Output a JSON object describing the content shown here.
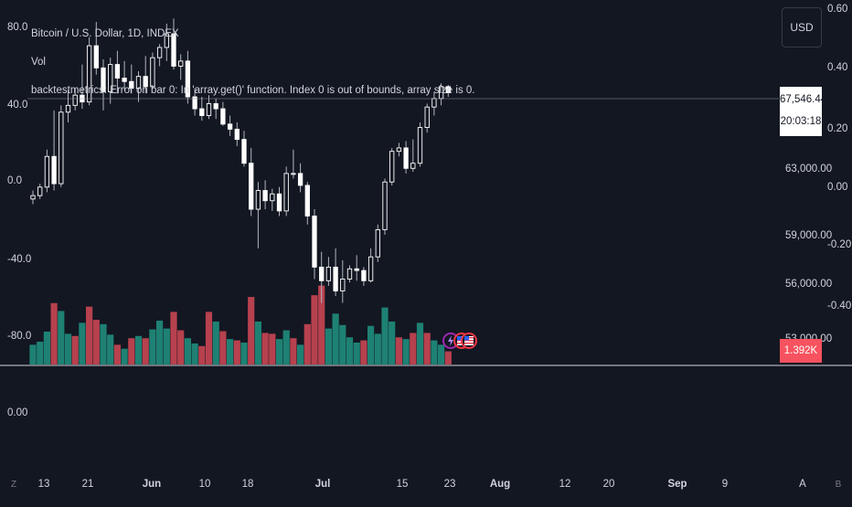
{
  "header": {
    "symbol": "Bitcoin / U.S. Dollar, 1D, INDEX",
    "volume_label": "Vol",
    "error_message": "backtestmetrics: Error on bar 0: In 'array.get()' function. Index 0 is out of bounds, array size is 0."
  },
  "currency_button": {
    "label": "USD"
  },
  "current_price": {
    "value": "67,546.44",
    "countdown": "20:03:18"
  },
  "current_volume": {
    "value": "1.392K"
  },
  "event_icons": [
    {
      "name": "lightning-icon",
      "color": "#9c27b0"
    },
    {
      "name": "us-flag-icon",
      "color": "#f23645"
    },
    {
      "name": "us-flag-icon",
      "color": "#f23645"
    }
  ],
  "chart_data": {
    "type": "candlestick",
    "title": "Bitcoin / U.S. Dollar, 1D, INDEX",
    "legend": [
      "Vol"
    ],
    "colors": {
      "up": "#ffffff",
      "down": "#ffffff",
      "vol_up": "#22ab94",
      "vol_down": "#f7525f",
      "wick": "#b2b5be"
    },
    "left_axis": {
      "ticks": [
        "80.0",
        "40.0",
        "0.0",
        "-40.0",
        "-80.0"
      ],
      "lower_pane_ticks": [
        "0.00"
      ]
    },
    "right_axis_outer": {
      "ticks": [
        "0.60",
        "0.40",
        "0.20",
        "0.00",
        "-0.20",
        "-0.40"
      ]
    },
    "right_axis_price": {
      "ticks": [
        "63,000.00",
        "59,000.00",
        "56,000.00",
        "53,000.00"
      ]
    },
    "x_axis": {
      "ticks": [
        "Z",
        "13",
        "21",
        "Jun",
        "10",
        "18",
        "Jul",
        "15",
        "23",
        "Aug",
        "12",
        "20",
        "Sep",
        "9",
        "A",
        "B"
      ]
    },
    "price_line": 67546.44,
    "candles": [
      {
        "o": 61300,
        "h": 61800,
        "l": 61000,
        "c": 61500
      },
      {
        "o": 61500,
        "h": 62200,
        "l": 61300,
        "c": 62000
      },
      {
        "o": 62000,
        "h": 64200,
        "l": 61700,
        "c": 63800
      },
      {
        "o": 63800,
        "h": 66500,
        "l": 61800,
        "c": 62200
      },
      {
        "o": 62200,
        "h": 66800,
        "l": 62000,
        "c": 66400
      },
      {
        "o": 66400,
        "h": 67700,
        "l": 65800,
        "c": 66800
      },
      {
        "o": 66800,
        "h": 67800,
        "l": 66500,
        "c": 67400
      },
      {
        "o": 67400,
        "h": 69200,
        "l": 66600,
        "c": 67000
      },
      {
        "o": 67000,
        "h": 70800,
        "l": 66800,
        "c": 70300
      },
      {
        "o": 70300,
        "h": 71700,
        "l": 68600,
        "c": 69000
      },
      {
        "o": 69000,
        "h": 69500,
        "l": 66500,
        "c": 67600
      },
      {
        "o": 67600,
        "h": 69600,
        "l": 66900,
        "c": 69200
      },
      {
        "o": 69200,
        "h": 70000,
        "l": 67500,
        "c": 68400
      },
      {
        "o": 68400,
        "h": 69400,
        "l": 67700,
        "c": 68200
      },
      {
        "o": 68200,
        "h": 69200,
        "l": 67500,
        "c": 67800
      },
      {
        "o": 67800,
        "h": 68800,
        "l": 67000,
        "c": 68500
      },
      {
        "o": 68500,
        "h": 69700,
        "l": 67500,
        "c": 67900
      },
      {
        "o": 67900,
        "h": 69900,
        "l": 67800,
        "c": 69600
      },
      {
        "o": 69600,
        "h": 70400,
        "l": 69100,
        "c": 70200
      },
      {
        "o": 70200,
        "h": 71600,
        "l": 69400,
        "c": 71000
      },
      {
        "o": 71000,
        "h": 71900,
        "l": 68900,
        "c": 69100
      },
      {
        "o": 69100,
        "h": 69800,
        "l": 68300,
        "c": 69400
      },
      {
        "o": 69400,
        "h": 70000,
        "l": 66900,
        "c": 67300
      },
      {
        "o": 67300,
        "h": 67800,
        "l": 66200,
        "c": 66600
      },
      {
        "o": 66600,
        "h": 67300,
        "l": 65900,
        "c": 66200
      },
      {
        "o": 66200,
        "h": 67400,
        "l": 66000,
        "c": 66900
      },
      {
        "o": 66900,
        "h": 67200,
        "l": 66000,
        "c": 66600
      },
      {
        "o": 66600,
        "h": 67000,
        "l": 65600,
        "c": 65700
      },
      {
        "o": 65700,
        "h": 66200,
        "l": 65000,
        "c": 65400
      },
      {
        "o": 65400,
        "h": 65800,
        "l": 64400,
        "c": 64800
      },
      {
        "o": 64800,
        "h": 65300,
        "l": 63200,
        "c": 63400
      },
      {
        "o": 63400,
        "h": 64300,
        "l": 60300,
        "c": 60700
      },
      {
        "o": 60700,
        "h": 62300,
        "l": 58400,
        "c": 61800
      },
      {
        "o": 61800,
        "h": 62400,
        "l": 60700,
        "c": 61200
      },
      {
        "o": 61200,
        "h": 61900,
        "l": 60600,
        "c": 61600
      },
      {
        "o": 61600,
        "h": 62000,
        "l": 60300,
        "c": 60600
      },
      {
        "o": 60600,
        "h": 63200,
        "l": 60300,
        "c": 62800
      },
      {
        "o": 62800,
        "h": 64200,
        "l": 62500,
        "c": 62800
      },
      {
        "o": 62800,
        "h": 63400,
        "l": 61700,
        "c": 62100
      },
      {
        "o": 62100,
        "h": 62300,
        "l": 59800,
        "c": 60300
      },
      {
        "o": 60300,
        "h": 60700,
        "l": 56600,
        "c": 57300
      },
      {
        "o": 57300,
        "h": 58200,
        "l": 55200,
        "c": 56500
      },
      {
        "o": 56500,
        "h": 57900,
        "l": 56200,
        "c": 57300
      },
      {
        "o": 57300,
        "h": 58400,
        "l": 55600,
        "c": 55900
      },
      {
        "o": 55900,
        "h": 57700,
        "l": 55200,
        "c": 56600
      },
      {
        "o": 56600,
        "h": 57400,
        "l": 56400,
        "c": 57200
      },
      {
        "o": 57200,
        "h": 58000,
        "l": 56500,
        "c": 57100
      },
      {
        "o": 57100,
        "h": 57300,
        "l": 56200,
        "c": 56500
      },
      {
        "o": 56500,
        "h": 58400,
        "l": 56400,
        "c": 57900
      },
      {
        "o": 57900,
        "h": 59800,
        "l": 57600,
        "c": 59500
      },
      {
        "o": 59500,
        "h": 62500,
        "l": 59200,
        "c": 62300
      },
      {
        "o": 62300,
        "h": 64300,
        "l": 62100,
        "c": 64100
      },
      {
        "o": 64100,
        "h": 64600,
        "l": 63800,
        "c": 64300
      },
      {
        "o": 64300,
        "h": 64700,
        "l": 62800,
        "c": 63100
      },
      {
        "o": 63100,
        "h": 64800,
        "l": 62900,
        "c": 63400
      },
      {
        "o": 63400,
        "h": 65800,
        "l": 63200,
        "c": 65500
      },
      {
        "o": 65500,
        "h": 66900,
        "l": 65200,
        "c": 66700
      },
      {
        "o": 66700,
        "h": 67600,
        "l": 66200,
        "c": 67200
      },
      {
        "o": 67200,
        "h": 68100,
        "l": 66800,
        "c": 67900
      },
      {
        "o": 67900,
        "h": 68000,
        "l": 67300,
        "c": 67546
      }
    ],
    "volumes": [
      {
        "v": 0.45,
        "up": true
      },
      {
        "v": 0.52,
        "up": true
      },
      {
        "v": 0.75,
        "up": true
      },
      {
        "v": 1.4,
        "up": false
      },
      {
        "v": 1.22,
        "up": true
      },
      {
        "v": 0.7,
        "up": true
      },
      {
        "v": 0.65,
        "up": false
      },
      {
        "v": 0.95,
        "up": true
      },
      {
        "v": 1.32,
        "up": false
      },
      {
        "v": 1.02,
        "up": false
      },
      {
        "v": 0.92,
        "up": true
      },
      {
        "v": 0.68,
        "up": true
      },
      {
        "v": 0.45,
        "up": false
      },
      {
        "v": 0.36,
        "up": true
      },
      {
        "v": 0.6,
        "up": false
      },
      {
        "v": 0.65,
        "up": true
      },
      {
        "v": 0.6,
        "up": false
      },
      {
        "v": 0.8,
        "up": true
      },
      {
        "v": 1.0,
        "up": true
      },
      {
        "v": 0.82,
        "up": true
      },
      {
        "v": 1.2,
        "up": false
      },
      {
        "v": 0.78,
        "up": false
      },
      {
        "v": 0.6,
        "up": true
      },
      {
        "v": 0.48,
        "up": true
      },
      {
        "v": 0.42,
        "up": false
      },
      {
        "v": 1.2,
        "up": false
      },
      {
        "v": 0.98,
        "up": true
      },
      {
        "v": 0.76,
        "up": false
      },
      {
        "v": 0.58,
        "up": true
      },
      {
        "v": 0.55,
        "up": false
      },
      {
        "v": 0.5,
        "up": true
      },
      {
        "v": 1.54,
        "up": false
      },
      {
        "v": 0.98,
        "up": true
      },
      {
        "v": 0.72,
        "up": false
      },
      {
        "v": 0.7,
        "up": false
      },
      {
        "v": 0.58,
        "up": true
      },
      {
        "v": 0.78,
        "up": true
      },
      {
        "v": 0.6,
        "up": false
      },
      {
        "v": 0.45,
        "up": true
      },
      {
        "v": 0.92,
        "up": false
      },
      {
        "v": 1.58,
        "up": false
      },
      {
        "v": 1.8,
        "up": false
      },
      {
        "v": 0.82,
        "up": true
      },
      {
        "v": 1.16,
        "up": true
      },
      {
        "v": 0.9,
        "up": true
      },
      {
        "v": 0.62,
        "up": true
      },
      {
        "v": 0.5,
        "up": true
      },
      {
        "v": 0.55,
        "up": false
      },
      {
        "v": 0.88,
        "up": true
      },
      {
        "v": 0.7,
        "up": true
      },
      {
        "v": 1.3,
        "up": true
      },
      {
        "v": 0.98,
        "up": true
      },
      {
        "v": 0.62,
        "up": false
      },
      {
        "v": 0.58,
        "up": true
      },
      {
        "v": 0.72,
        "up": false
      },
      {
        "v": 0.95,
        "up": true
      },
      {
        "v": 0.72,
        "up": false
      },
      {
        "v": 0.55,
        "up": true
      },
      {
        "v": 0.45,
        "up": true
      },
      {
        "v": 0.3,
        "up": false
      }
    ]
  }
}
